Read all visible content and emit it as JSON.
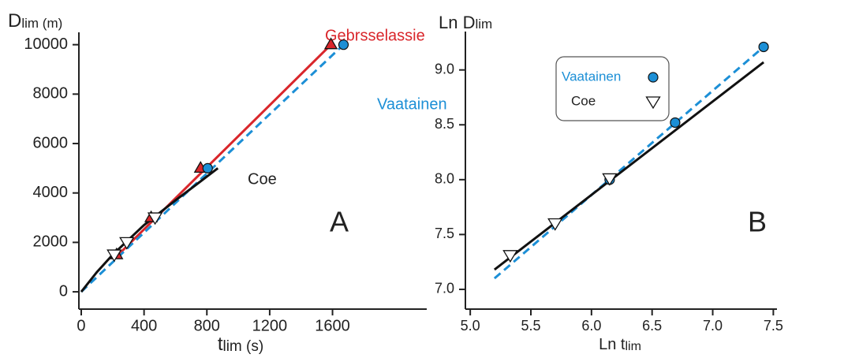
{
  "chart_data": [
    {
      "type": "scatter",
      "x_label": {
        "main": "t",
        "sub": "lim (s)"
      },
      "y_label": {
        "main": "D",
        "sub": "lim (m)"
      },
      "annotation": "A",
      "xlim": [
        -15,
        2200
      ],
      "xticks": [
        0,
        400,
        800,
        1200,
        1600
      ],
      "ylim": [
        -700,
        10500
      ],
      "yticks": [
        0,
        2000,
        4000,
        6000,
        8000,
        10000
      ],
      "series": [
        {
          "name": "Gebrsselassie",
          "color": "#d9262b",
          "marker": "triangle-up",
          "x": [
            225,
            445,
            760,
            1590
          ],
          "y": [
            1500,
            3000,
            5000,
            10000
          ],
          "fit_x": [
            220,
            1590
          ],
          "fit_y": [
            1400,
            10000
          ],
          "dashed": false
        },
        {
          "name": "Vaatainen",
          "color": "#1c8fd6",
          "marker": "circle",
          "x": [
            805,
            1670
          ],
          "y": [
            5000,
            10000
          ],
          "fit_x": [
            0,
            1670
          ],
          "fit_y": [
            0,
            10000
          ],
          "dashed": true
        },
        {
          "name": "Coe",
          "color": "#111111",
          "marker": "triangle-down",
          "x": [
            210,
            290,
            470
          ],
          "y": [
            1500,
            2000,
            3000
          ],
          "fit_x": [
            0,
            100,
            200,
            400,
            600,
            870
          ],
          "fit_y": [
            0,
            800,
            1500,
            2700,
            3700,
            5000
          ],
          "dashed": false
        }
      ]
    },
    {
      "type": "scatter",
      "x_label": {
        "main": "Ln t",
        "sub": "lim"
      },
      "y_label": {
        "main": "Ln D",
        "sub": "lim"
      },
      "annotation": "B",
      "legend": "upper left",
      "xlim": [
        4.96,
        7.53
      ],
      "xticks": [
        {
          "value": 5,
          "label": "5.0"
        },
        5.5,
        {
          "value": 6,
          "label": "6.0"
        },
        6.5,
        {
          "value": 7,
          "label": "7.0"
        },
        7.5
      ],
      "ylim": [
        6.82,
        9.35
      ],
      "yticks": [
        {
          "value": 7,
          "label": "7.0"
        },
        7.5,
        {
          "value": 8,
          "label": "8.0"
        },
        8.5,
        {
          "value": 9,
          "label": "9.0"
        }
      ],
      "series": [
        {
          "name": "Vaatainen",
          "color": "#1c8fd6",
          "marker": "circle",
          "x": [
            6.15,
            6.69,
            7.42
          ],
          "y": [
            8.0,
            8.52,
            9.21
          ],
          "fit_x": [
            5.2,
            7.42
          ],
          "fit_y": [
            7.1,
            9.21
          ],
          "dashed": true
        },
        {
          "name": "Coe",
          "color": "#111111",
          "marker": "triangle-down",
          "x": [
            5.33,
            5.7,
            6.15
          ],
          "y": [
            7.31,
            7.6,
            8.01
          ],
          "fit_x": [
            5.2,
            7.42
          ],
          "fit_y": [
            7.18,
            9.07
          ],
          "dashed": false
        }
      ]
    }
  ]
}
